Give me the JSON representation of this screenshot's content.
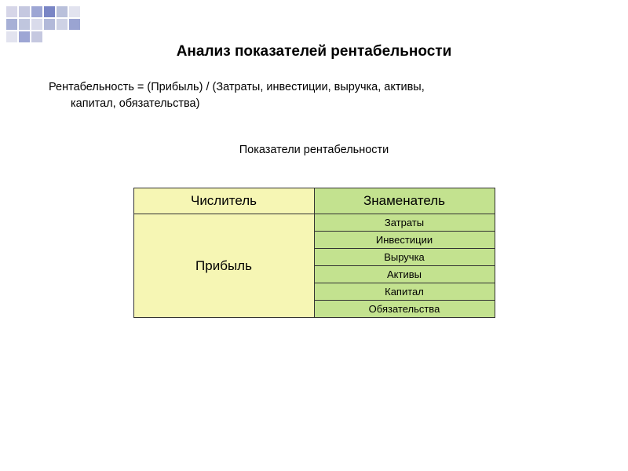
{
  "decoration": {
    "colors": [
      "#d6d6e8",
      "#c5c8e0",
      "#9da6d4",
      "#7985c5",
      "#b9c0db",
      "#e2e3ef",
      "#a7b0d6",
      "#c0c6de",
      "#d9dbeb",
      "#b2b9d9",
      "#ced2e5",
      "#9aa4d2"
    ]
  },
  "title": "Анализ показателей рентабельности",
  "formula_line1": "Рентабельность = (Прибыль) / (Затраты, инвестиции, выручка, активы,",
  "formula_line2": "капитал, обязательства)",
  "subtitle": "Показатели рентабельности",
  "table": {
    "header_left": "Числитель",
    "header_right": "Знаменатель",
    "left_value": "Прибыль",
    "right_values": [
      "Затраты",
      "Инвестиции",
      "Выручка",
      "Активы",
      "Капитал",
      "Обязательства"
    ],
    "colors": {
      "yellow_bg": "#f6f6b4",
      "green_bg": "#c3e28f",
      "border": "#333333"
    }
  }
}
